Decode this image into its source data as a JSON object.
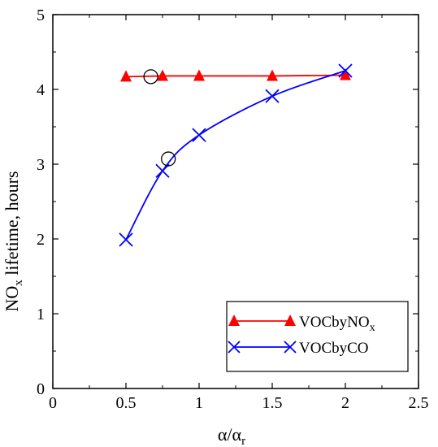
{
  "chart_data": {
    "type": "line",
    "xlabel": "α/α",
    "xlabel_sub": "r",
    "ylabel": "NO",
    "ylabel_sub": "x",
    "ylabel_rest": " lifetime, hours",
    "xlim": [
      0,
      2.5
    ],
    "ylim": [
      0,
      5
    ],
    "xticks": [
      0,
      0.5,
      1,
      1.5,
      2,
      2.5
    ],
    "xtick_labels": [
      "0",
      "0.5",
      "1",
      "1.5",
      "2",
      "2.5"
    ],
    "yticks": [
      0,
      1,
      2,
      3,
      4,
      5
    ],
    "ytick_labels": [
      "0",
      "1",
      "2",
      "3",
      "4",
      "5"
    ],
    "grid": false,
    "legend_position": "bottom-right",
    "series": [
      {
        "name": "VOCbyNO",
        "name_sub": "x",
        "color": "#ff0000",
        "marker": "triangle",
        "x": [
          0.5,
          0.75,
          1.0,
          1.5,
          2.0
        ],
        "y": [
          4.17,
          4.18,
          4.18,
          4.18,
          4.19
        ]
      },
      {
        "name": "VOCbyCO",
        "name_sub": "",
        "color": "#0000ff",
        "marker": "x",
        "x": [
          0.5,
          0.75,
          1.0,
          1.5,
          2.0
        ],
        "y": [
          1.99,
          2.91,
          3.39,
          3.91,
          4.25
        ]
      }
    ],
    "annotations": [
      {
        "type": "circle",
        "x": 0.67,
        "y": 4.17
      },
      {
        "type": "circle",
        "x": 0.79,
        "y": 3.07
      }
    ]
  }
}
